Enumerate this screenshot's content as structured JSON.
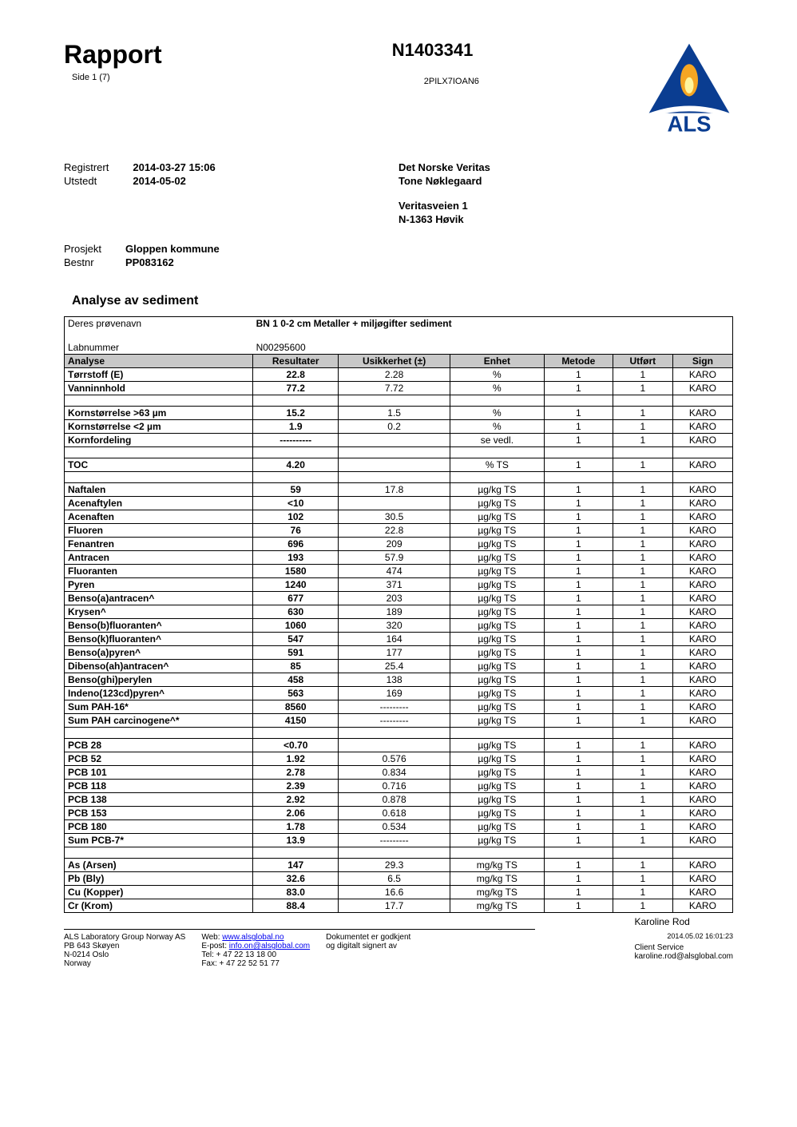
{
  "header": {
    "title": "Rapport",
    "side": "Side 1 (7)",
    "report_no": "N1403341",
    "barcode": "2PILX7IOAN6"
  },
  "logo": {
    "text": "ALS",
    "triangle_fill": "#0a3d91",
    "flame_fill": "#f5a623",
    "text_color": "#0a3d91"
  },
  "meta": {
    "reg_label": "Registrert",
    "reg_value": "2014-03-27 15:06",
    "utstedt_label": "Utstedt",
    "utstedt_value": "2014-05-02",
    "client1": "Det Norske Veritas",
    "client2": "Tone Nøklegaard",
    "addr1": "Veritasveien 1",
    "addr2": "N-1363 Høvik",
    "prosjekt_label": "Prosjekt",
    "prosjekt_value": "Gloppen kommune",
    "bestnr_label": "Bestnr",
    "bestnr_value": "PP083162"
  },
  "section_title": "Analyse av sediment",
  "sample": {
    "name_label": "Deres prøvenavn",
    "name_value": "BN 1 0-2 cm Metaller + miljøgifter sediment",
    "labnr_label": "Labnummer",
    "labnr_value": "N00295600"
  },
  "table": {
    "columns": [
      "Analyse",
      "Resultater",
      "Usikkerhet (±)",
      "Enhet",
      "Metode",
      "Utført",
      "Sign"
    ],
    "groups": [
      [
        {
          "a": "Tørrstoff (E)",
          "r": "22.8",
          "u": "2.28",
          "e": "%",
          "m": "1",
          "ut": "1",
          "s": "KARO"
        },
        {
          "a": "Vanninnhold",
          "r": "77.2",
          "u": "7.72",
          "e": "%",
          "m": "1",
          "ut": "1",
          "s": "KARO"
        }
      ],
      [
        {
          "a": "Kornstørrelse >63 µm",
          "r": "15.2",
          "u": "1.5",
          "e": "%",
          "m": "1",
          "ut": "1",
          "s": "KARO"
        },
        {
          "a": "Kornstørrelse <2 µm",
          "r": "1.9",
          "u": "0.2",
          "e": "%",
          "m": "1",
          "ut": "1",
          "s": "KARO"
        },
        {
          "a": "Kornfordeling",
          "r": "----------",
          "u": "",
          "e": "se vedl.",
          "m": "1",
          "ut": "1",
          "s": "KARO"
        }
      ],
      [
        {
          "a": "TOC",
          "r": "4.20",
          "u": "",
          "e": "% TS",
          "m": "1",
          "ut": "1",
          "s": "KARO"
        }
      ],
      [
        {
          "a": "Naftalen",
          "r": "59",
          "u": "17.8",
          "e": "µg/kg TS",
          "m": "1",
          "ut": "1",
          "s": "KARO"
        },
        {
          "a": "Acenaftylen",
          "r": "<10",
          "u": "",
          "e": "µg/kg TS",
          "m": "1",
          "ut": "1",
          "s": "KARO"
        },
        {
          "a": "Acenaften",
          "r": "102",
          "u": "30.5",
          "e": "µg/kg TS",
          "m": "1",
          "ut": "1",
          "s": "KARO"
        },
        {
          "a": "Fluoren",
          "r": "76",
          "u": "22.8",
          "e": "µg/kg TS",
          "m": "1",
          "ut": "1",
          "s": "KARO"
        },
        {
          "a": "Fenantren",
          "r": "696",
          "u": "209",
          "e": "µg/kg TS",
          "m": "1",
          "ut": "1",
          "s": "KARO"
        },
        {
          "a": "Antracen",
          "r": "193",
          "u": "57.9",
          "e": "µg/kg TS",
          "m": "1",
          "ut": "1",
          "s": "KARO"
        },
        {
          "a": "Fluoranten",
          "r": "1580",
          "u": "474",
          "e": "µg/kg TS",
          "m": "1",
          "ut": "1",
          "s": "KARO"
        },
        {
          "a": "Pyren",
          "r": "1240",
          "u": "371",
          "e": "µg/kg TS",
          "m": "1",
          "ut": "1",
          "s": "KARO"
        },
        {
          "a": "Benso(a)antracen^",
          "r": "677",
          "u": "203",
          "e": "µg/kg TS",
          "m": "1",
          "ut": "1",
          "s": "KARO"
        },
        {
          "a": "Krysen^",
          "r": "630",
          "u": "189",
          "e": "µg/kg TS",
          "m": "1",
          "ut": "1",
          "s": "KARO"
        },
        {
          "a": "Benso(b)fluoranten^",
          "r": "1060",
          "u": "320",
          "e": "µg/kg TS",
          "m": "1",
          "ut": "1",
          "s": "KARO"
        },
        {
          "a": "Benso(k)fluoranten^",
          "r": "547",
          "u": "164",
          "e": "µg/kg TS",
          "m": "1",
          "ut": "1",
          "s": "KARO"
        },
        {
          "a": "Benso(a)pyren^",
          "r": "591",
          "u": "177",
          "e": "µg/kg TS",
          "m": "1",
          "ut": "1",
          "s": "KARO"
        },
        {
          "a": "Dibenso(ah)antracen^",
          "r": "85",
          "u": "25.4",
          "e": "µg/kg TS",
          "m": "1",
          "ut": "1",
          "s": "KARO"
        },
        {
          "a": "Benso(ghi)perylen",
          "r": "458",
          "u": "138",
          "e": "µg/kg TS",
          "m": "1",
          "ut": "1",
          "s": "KARO"
        },
        {
          "a": "Indeno(123cd)pyren^",
          "r": "563",
          "u": "169",
          "e": "µg/kg TS",
          "m": "1",
          "ut": "1",
          "s": "KARO"
        },
        {
          "a": "Sum PAH-16*",
          "r": "8560",
          "u": "---------",
          "e": "µg/kg TS",
          "m": "1",
          "ut": "1",
          "s": "KARO"
        },
        {
          "a": "Sum PAH carcinogene^*",
          "r": "4150",
          "u": "---------",
          "e": "µg/kg TS",
          "m": "1",
          "ut": "1",
          "s": "KARO"
        }
      ],
      [
        {
          "a": "PCB 28",
          "r": "<0.70",
          "u": "",
          "e": "µg/kg TS",
          "m": "1",
          "ut": "1",
          "s": "KARO"
        },
        {
          "a": "PCB 52",
          "r": "1.92",
          "u": "0.576",
          "e": "µg/kg TS",
          "m": "1",
          "ut": "1",
          "s": "KARO"
        },
        {
          "a": "PCB 101",
          "r": "2.78",
          "u": "0.834",
          "e": "µg/kg TS",
          "m": "1",
          "ut": "1",
          "s": "KARO"
        },
        {
          "a": "PCB 118",
          "r": "2.39",
          "u": "0.716",
          "e": "µg/kg TS",
          "m": "1",
          "ut": "1",
          "s": "KARO"
        },
        {
          "a": "PCB 138",
          "r": "2.92",
          "u": "0.878",
          "e": "µg/kg TS",
          "m": "1",
          "ut": "1",
          "s": "KARO"
        },
        {
          "a": "PCB 153",
          "r": "2.06",
          "u": "0.618",
          "e": "µg/kg TS",
          "m": "1",
          "ut": "1",
          "s": "KARO"
        },
        {
          "a": "PCB 180",
          "r": "1.78",
          "u": "0.534",
          "e": "µg/kg TS",
          "m": "1",
          "ut": "1",
          "s": "KARO"
        },
        {
          "a": "Sum PCB-7*",
          "r": "13.9",
          "u": "---------",
          "e": "µg/kg TS",
          "m": "1",
          "ut": "1",
          "s": "KARO"
        }
      ],
      [
        {
          "a": "As (Arsen)",
          "r": "147",
          "u": "29.3",
          "e": "mg/kg TS",
          "m": "1",
          "ut": "1",
          "s": "KARO"
        },
        {
          "a": "Pb (Bly)",
          "r": "32.6",
          "u": "6.5",
          "e": "mg/kg TS",
          "m": "1",
          "ut": "1",
          "s": "KARO"
        },
        {
          "a": "Cu (Kopper)",
          "r": "83.0",
          "u": "16.6",
          "e": "mg/kg TS",
          "m": "1",
          "ut": "1",
          "s": "KARO"
        },
        {
          "a": "Cr (Krom)",
          "r": "88.4",
          "u": "17.7",
          "e": "mg/kg TS",
          "m": "1",
          "ut": "1",
          "s": "KARO"
        }
      ]
    ]
  },
  "footer": {
    "company": "ALS Laboratory Group Norway AS",
    "addr1": "PB 643 Skøyen",
    "addr2": "N-0214 Oslo",
    "addr3": "Norway",
    "web_label": "Web:",
    "web": "www.alsglobal.no",
    "email_label": "E-post:",
    "email": "info.on@alsglobal.com",
    "tel": "Tel: + 47 22 13 18 00",
    "fax": "Fax: + 47 22 52 51 77",
    "approved1": "Dokumentet er godkjent",
    "approved2": "og digitalt signert av",
    "sig_name": "Karoline Rod",
    "sig_role": "Client Service",
    "sig_email": "karoline.rod@alsglobal.com",
    "timestamp": "2014.05.02 16:01:23"
  }
}
